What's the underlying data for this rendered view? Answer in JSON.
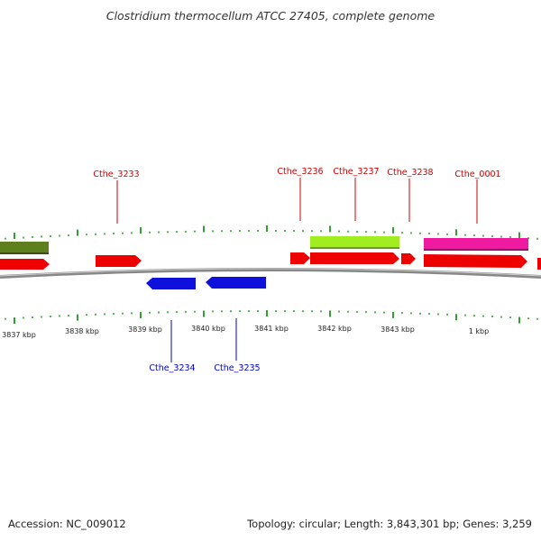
{
  "title": "Clostridium thermocellum ATCC 27405, complete genome",
  "footer": {
    "accession": "Accession: NC_009012",
    "summary": "Topology: circular; Length: 3,843,301 bp; Genes: 3,259"
  },
  "colors": {
    "forward_gene": "#ee0000",
    "reverse_gene": "#1010dd",
    "ticks": "#008800",
    "backbone": "#888888",
    "olive_feature": "#5f7f1f",
    "lime_feature": "#a0ee20",
    "pink_feature": "#ee1aa0"
  },
  "scale_labels": [
    "3837 kbp",
    "3838 kbp",
    "3839 kbp",
    "3840 kbp",
    "3841 kbp",
    "3842 kbp",
    "3843 kbp",
    "1 kbp"
  ],
  "gene_labels_top": [
    "Cthe_3233",
    "Cthe_3236",
    "Cthe_3237",
    "Cthe_3238",
    "Cthe_0001"
  ],
  "gene_labels_bottom": [
    "Cthe_3234",
    "Cthe_3235"
  ]
}
